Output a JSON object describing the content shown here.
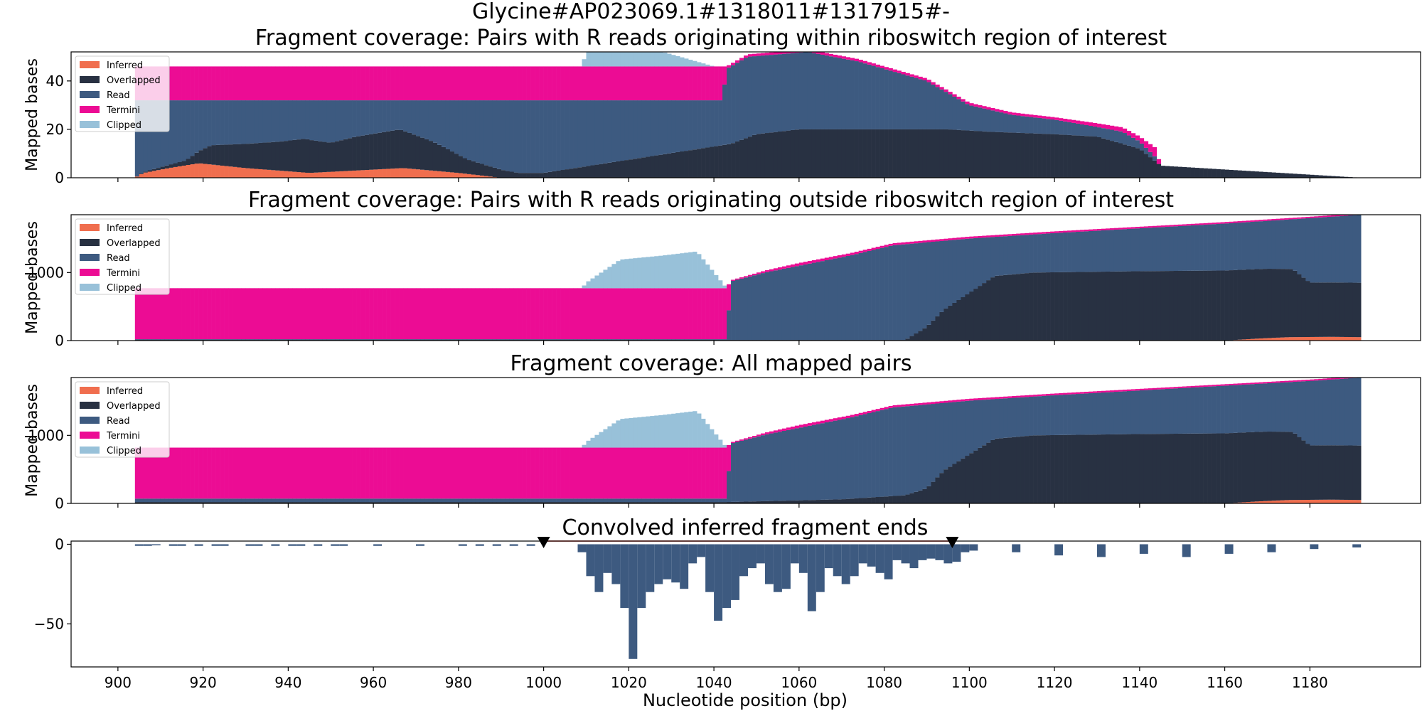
{
  "figure": {
    "title": "Glycine#AP023069.1#1318011#1317915#-",
    "xlabel": "Nucleotide position (bp)"
  },
  "colors": {
    "inferred": "#f06e4e",
    "overlapped": "#283142",
    "read": "#3d5a80",
    "termini": "#ec0c94",
    "clipped": "#98c1d9",
    "conv": "#3d5a80",
    "marker": "#000000",
    "window_line": "#e0291c"
  },
  "legend_labels": [
    "Inferred",
    "Overlapped",
    "Read",
    "Termini",
    "Clipped"
  ],
  "chart_data": [
    {
      "type": "area",
      "title": "Fragment coverage: Pairs with R reads originating within riboswitch region of interest",
      "ylabel": "Mapped bases",
      "xlim": [
        889,
        1206
      ],
      "ylim": [
        0,
        52
      ],
      "yticks": [
        0,
        20,
        40
      ],
      "legend": "top-left",
      "stacked_layers": [
        "inferred",
        "overlapped",
        "read",
        "termini",
        "clipped"
      ],
      "series": {
        "inferred": [
          [
            904,
            0
          ],
          [
            906,
            2
          ],
          [
            912,
            4
          ],
          [
            919,
            6
          ],
          [
            930,
            4
          ],
          [
            945,
            2
          ],
          [
            967,
            4
          ],
          [
            980,
            2
          ],
          [
            990,
            0
          ],
          [
            1192,
            0
          ]
        ],
        "overlapped": [
          [
            904,
            0
          ],
          [
            916,
            2
          ],
          [
            922,
            8
          ],
          [
            930,
            10
          ],
          [
            938,
            12
          ],
          [
            944,
            14
          ],
          [
            950,
            12
          ],
          [
            956,
            14
          ],
          [
            966,
            16
          ],
          [
            974,
            12
          ],
          [
            982,
            6
          ],
          [
            994,
            2
          ],
          [
            1000,
            2
          ],
          [
            1044,
            14
          ],
          [
            1050,
            18
          ],
          [
            1055,
            19
          ],
          [
            1060,
            20
          ],
          [
            1080,
            20
          ],
          [
            1095,
            20
          ],
          [
            1105,
            19
          ],
          [
            1120,
            18
          ],
          [
            1130,
            17
          ],
          [
            1140,
            12
          ],
          [
            1145,
            5
          ],
          [
            1192,
            0
          ]
        ],
        "read": [
          [
            904,
            32
          ],
          [
            1042,
            32
          ],
          [
            1043,
            45
          ],
          [
            1048,
            50
          ],
          [
            1062,
            52
          ],
          [
            1074,
            48
          ],
          [
            1080,
            45
          ],
          [
            1090,
            40
          ],
          [
            1100,
            30
          ],
          [
            1110,
            26
          ],
          [
            1120,
            24
          ],
          [
            1130,
            21
          ],
          [
            1136,
            19
          ],
          [
            1140,
            15
          ],
          [
            1144,
            8
          ],
          [
            1145,
            0
          ],
          [
            1192,
            0
          ]
        ],
        "termini": [
          [
            1042,
            14
          ],
          [
            1043,
            1
          ],
          [
            1062,
            1
          ],
          [
            1080,
            1
          ],
          [
            1100,
            1
          ],
          [
            1120,
            1
          ],
          [
            1140,
            2
          ],
          [
            1144,
            4
          ],
          [
            1145,
            0
          ]
        ],
        "clipped": [
          [
            1009,
            0
          ],
          [
            1010,
            6
          ],
          [
            1020,
            10
          ],
          [
            1040,
            0
          ],
          [
            1192,
            0
          ]
        ]
      }
    },
    {
      "type": "area",
      "title": "Fragment coverage: Pairs with R reads originating outside riboswitch region of interest",
      "ylabel": "Mapped bases",
      "xlim": [
        889,
        1206
      ],
      "ylim": [
        0,
        1850
      ],
      "yticks": [
        0,
        1000
      ],
      "legend": "top-left",
      "stacked_layers": [
        "inferred",
        "overlapped",
        "read",
        "termini",
        "clipped"
      ],
      "series": {
        "inferred": [
          [
            904,
            0
          ],
          [
            1160,
            0
          ],
          [
            1168,
            30
          ],
          [
            1175,
            50
          ],
          [
            1185,
            55
          ],
          [
            1192,
            50
          ]
        ],
        "overlapped": [
          [
            904,
            10
          ],
          [
            1085,
            10
          ],
          [
            1090,
            200
          ],
          [
            1094,
            450
          ],
          [
            1100,
            700
          ],
          [
            1106,
            950
          ],
          [
            1115,
            1000
          ],
          [
            1140,
            1020
          ],
          [
            1160,
            1030
          ],
          [
            1170,
            1020
          ],
          [
            1176,
            1000
          ],
          [
            1180,
            800
          ],
          [
            1192,
            800
          ]
        ],
        "read": [
          [
            904,
            20
          ],
          [
            1009,
            20
          ],
          [
            1018,
            20
          ],
          [
            1043,
            20
          ],
          [
            1044,
            870
          ],
          [
            1052,
            1000
          ],
          [
            1060,
            1100
          ],
          [
            1072,
            1250
          ],
          [
            1082,
            1400
          ],
          [
            1100,
            1500
          ],
          [
            1120,
            1580
          ],
          [
            1140,
            1650
          ],
          [
            1160,
            1720
          ],
          [
            1180,
            1800
          ],
          [
            1192,
            1850
          ]
        ],
        "termini": [
          [
            1043,
            750
          ],
          [
            1044,
            15
          ],
          [
            1060,
            40
          ],
          [
            1080,
            30
          ],
          [
            1120,
            25
          ],
          [
            1180,
            20
          ]
        ],
        "clipped": [
          [
            1009,
            0
          ],
          [
            1010,
            80
          ],
          [
            1018,
            420
          ],
          [
            1028,
            480
          ],
          [
            1036,
            540
          ],
          [
            1043,
            0
          ]
        ]
      }
    },
    {
      "type": "area",
      "title": "Fragment coverage: All mapped pairs",
      "ylabel": "Mapped bases",
      "xlim": [
        889,
        1206
      ],
      "ylim": [
        0,
        1850
      ],
      "yticks": [
        0,
        1000
      ],
      "legend": "top-left",
      "stacked_layers": [
        "inferred",
        "overlapped",
        "read",
        "termini",
        "clipped"
      ],
      "series": {
        "inferred": [
          [
            904,
            0
          ],
          [
            1160,
            0
          ],
          [
            1168,
            30
          ],
          [
            1175,
            50
          ],
          [
            1185,
            55
          ],
          [
            1192,
            50
          ]
        ],
        "overlapped": [
          [
            904,
            20
          ],
          [
            1043,
            20
          ],
          [
            1050,
            30
          ],
          [
            1070,
            60
          ],
          [
            1085,
            120
          ],
          [
            1090,
            220
          ],
          [
            1094,
            480
          ],
          [
            1100,
            720
          ],
          [
            1106,
            950
          ],
          [
            1115,
            1000
          ],
          [
            1140,
            1020
          ],
          [
            1160,
            1030
          ],
          [
            1170,
            1020
          ],
          [
            1176,
            1000
          ],
          [
            1180,
            800
          ],
          [
            1192,
            800
          ]
        ],
        "read": [
          [
            904,
            70
          ],
          [
            1009,
            70
          ],
          [
            1043,
            70
          ],
          [
            1044,
            880
          ],
          [
            1052,
            1010
          ],
          [
            1060,
            1110
          ],
          [
            1072,
            1260
          ],
          [
            1082,
            1410
          ],
          [
            1100,
            1510
          ],
          [
            1120,
            1590
          ],
          [
            1140,
            1660
          ],
          [
            1160,
            1730
          ],
          [
            1180,
            1800
          ],
          [
            1192,
            1850
          ]
        ],
        "termini": [
          [
            1043,
            750
          ],
          [
            1044,
            15
          ],
          [
            1060,
            40
          ],
          [
            1080,
            30
          ],
          [
            1120,
            25
          ],
          [
            1180,
            20
          ]
        ],
        "clipped": [
          [
            1009,
            0
          ],
          [
            1010,
            80
          ],
          [
            1018,
            420
          ],
          [
            1028,
            480
          ],
          [
            1036,
            540
          ],
          [
            1043,
            0
          ]
        ]
      }
    },
    {
      "type": "bar",
      "title": "Convolved inferred fragment ends",
      "xlabel": "Nucleotide position (bp)",
      "xlim": [
        889,
        1206
      ],
      "ylim": [
        -77,
        2
      ],
      "yticks": [
        0,
        -50
      ],
      "xticks": [
        900,
        920,
        940,
        960,
        980,
        1000,
        1020,
        1040,
        1060,
        1080,
        1100,
        1120,
        1140,
        1160,
        1180
      ],
      "markers": [
        1000,
        1096
      ],
      "series": [
        {
          "x": [
            904,
            906,
            908,
            912,
            914,
            918,
            922,
            924,
            930,
            932,
            936,
            940,
            942,
            946,
            950,
            952,
            960,
            970,
            980,
            984,
            988,
            992,
            996
          ],
          "values": [
            -1,
            -1,
            -0.5,
            -1,
            -1,
            -1,
            -1,
            -1,
            -1,
            -1,
            -1,
            -1,
            -1,
            -1,
            -1,
            -1,
            -1,
            -1,
            -1,
            -1,
            -1,
            -1,
            -1
          ]
        },
        {
          "x": [
            1008,
            1010,
            1012,
            1014,
            1016,
            1018,
            1020,
            1022,
            1024,
            1026,
            1028,
            1030,
            1032,
            1034,
            1036,
            1038,
            1040,
            1042,
            1044,
            1046,
            1048,
            1050,
            1052,
            1054,
            1056,
            1058,
            1060,
            1062,
            1064,
            1066,
            1068,
            1070,
            1072,
            1074,
            1076,
            1078,
            1080,
            1082,
            1084,
            1086,
            1088,
            1090,
            1092,
            1094,
            1096,
            1098,
            1100,
            1110,
            1120,
            1130,
            1140,
            1150,
            1160,
            1170,
            1180,
            1190
          ],
          "values": [
            -5,
            -20,
            -30,
            -18,
            -25,
            -40,
            -72,
            -40,
            -30,
            -25,
            -22,
            -24,
            -28,
            -12,
            -8,
            -30,
            -48,
            -40,
            -35,
            -20,
            -15,
            -12,
            -25,
            -30,
            -28,
            -12,
            -18,
            -42,
            -30,
            -15,
            -20,
            -25,
            -20,
            -12,
            -14,
            -18,
            -22,
            -10,
            -12,
            -15,
            -10,
            -9,
            -10,
            -12,
            -11,
            -5,
            -4,
            -5,
            -7,
            -8,
            -6,
            -8,
            -6,
            -5,
            -3,
            -2
          ]
        }
      ]
    }
  ]
}
